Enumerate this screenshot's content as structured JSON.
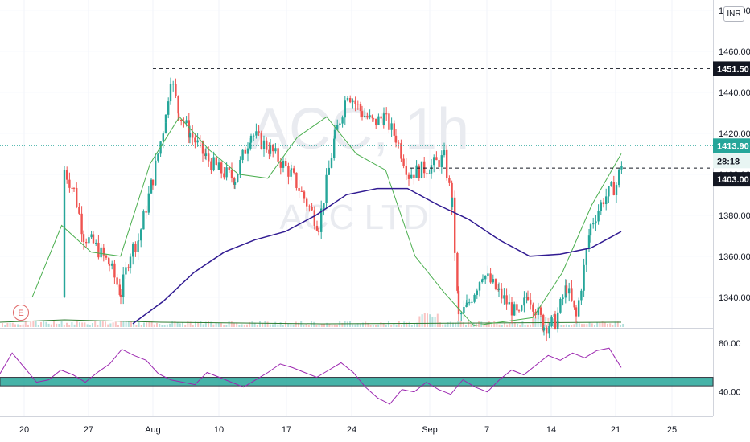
{
  "watermark": {
    "symbol": "ACC, 1h",
    "name": "ACC LTD"
  },
  "currency_badge": "INR",
  "earnings_marker": "E",
  "colors": {
    "up": "#26a69a",
    "down": "#ef5350",
    "ma_fast": "#4caf50",
    "ma_slow": "#311b92",
    "rsi": "#9c27b0",
    "band": "#26a69a",
    "volume_ma": "#2e7d32"
  },
  "chart_data": [
    {
      "type": "candlestick",
      "title": "",
      "symbol": "ACC",
      "interval": "1h",
      "ylim": [
        1325,
        1485
      ],
      "y_ticks": [
        "1340.00",
        "1360.00",
        "1380.00",
        "1400.00",
        "1420.00",
        "1440.00",
        "1460.00",
        "1480.00"
      ],
      "x_ticks": [
        "20",
        "27",
        "Aug",
        "10",
        "17",
        "24",
        "Sep",
        "7",
        "14",
        "21",
        "25"
      ],
      "price_labels": [
        {
          "text": "1451.50",
          "value": 1451.5,
          "style": "dashed-level"
        },
        {
          "text": "1413.90",
          "value": 1413.9,
          "style": "last-price"
        },
        {
          "text": "28:18",
          "style": "countdown"
        },
        {
          "text": "1403.00",
          "value": 1403.0,
          "style": "dashed-level"
        }
      ],
      "horizontal_levels": [
        1451.5,
        1403.0
      ],
      "close_path": [
        [
          "20",
          1340
        ],
        [
          "21",
          1402
        ],
        [
          "22",
          1392
        ],
        [
          "23",
          1370
        ],
        [
          "24",
          1366
        ],
        [
          "27",
          1356
        ],
        [
          "28",
          1342
        ],
        [
          "29",
          1362
        ],
        [
          "30",
          1368
        ],
        [
          "31",
          1398
        ],
        [
          "Aug 3",
          1428
        ],
        [
          "Aug 4",
          1448
        ],
        [
          "Aug 5",
          1430
        ],
        [
          "Aug 6",
          1420
        ],
        [
          "Aug 7",
          1408
        ],
        [
          "Aug 10",
          1402
        ],
        [
          "Aug 11",
          1398
        ],
        [
          "Aug 12",
          1420
        ],
        [
          "Aug 13",
          1412
        ],
        [
          "Aug 14",
          1400
        ],
        [
          "Aug 17",
          1375
        ],
        [
          "Aug 18",
          1418
        ],
        [
          "Aug 19",
          1440
        ],
        [
          "Aug 20",
          1430
        ],
        [
          "Aug 21",
          1425
        ],
        [
          "Aug 24",
          1428
        ],
        [
          "Aug 25",
          1418
        ],
        [
          "Aug 26",
          1400
        ],
        [
          "Aug 27",
          1404
        ],
        [
          "Aug 28",
          1408
        ],
        [
          "Aug 31",
          1385
        ],
        [
          "Sep 1",
          1330
        ],
        [
          "Sep 2",
          1335
        ],
        [
          "Sep 3",
          1352
        ],
        [
          "Sep 4",
          1342
        ],
        [
          "Sep 7",
          1330
        ],
        [
          "Sep 8",
          1342
        ],
        [
          "Sep 9",
          1326
        ],
        [
          "Sep 10",
          1328
        ],
        [
          "Sep 11",
          1345
        ],
        [
          "Sep 14",
          1330
        ],
        [
          "Sep 15",
          1375
        ],
        [
          "Sep 16",
          1388
        ],
        [
          "Sep 17",
          1395
        ],
        [
          "Sep 18",
          1410
        ],
        [
          "Sep 21",
          1438
        ],
        [
          "Sep 21 last",
          1413.9
        ]
      ],
      "moving_average_fast": [
        [
          "20",
          1340
        ],
        [
          "22",
          1375
        ],
        [
          "27",
          1362
        ],
        [
          "29",
          1360
        ],
        [
          "Aug 3",
          1405
        ],
        [
          "Aug 5",
          1428
        ],
        [
          "Aug 10",
          1412
        ],
        [
          "Aug 14",
          1400
        ],
        [
          "Aug 17",
          1398
        ],
        [
          "Aug 19",
          1418
        ],
        [
          "Aug 24",
          1428
        ],
        [
          "Aug 27",
          1410
        ],
        [
          "Aug 31",
          1402
        ],
        [
          "Sep 2",
          1360
        ],
        [
          "Sep 7",
          1342
        ],
        [
          "Sep 9",
          1326
        ],
        [
          "Sep 11",
          1328
        ],
        [
          "Sep 14",
          1330
        ],
        [
          "Sep 16",
          1352
        ],
        [
          "Sep 18",
          1385
        ],
        [
          "Sep 21",
          1410
        ]
      ],
      "moving_average_slow": [
        [
          "29",
          1327
        ],
        [
          "31",
          1338
        ],
        [
          "Aug 5",
          1352
        ],
        [
          "Aug 10",
          1362
        ],
        [
          "Aug 14",
          1368
        ],
        [
          "Aug 17",
          1372
        ],
        [
          "Aug 20",
          1380
        ],
        [
          "Aug 24",
          1390
        ],
        [
          "Aug 27",
          1393
        ],
        [
          "Aug 31",
          1393
        ],
        [
          "Sep 2",
          1385
        ],
        [
          "Sep 7",
          1378
        ],
        [
          "Sep 10",
          1368
        ],
        [
          "Sep 14",
          1360
        ],
        [
          "Sep 16",
          1361
        ],
        [
          "Sep 18",
          1364
        ],
        [
          "Sep 21",
          1372
        ]
      ]
    },
    {
      "type": "line",
      "title": "",
      "series_label": "RSI",
      "ylim": [
        20,
        90
      ],
      "y_ticks": [
        "80.00",
        "40.00"
      ],
      "band": [
        45,
        52
      ],
      "values": [
        55,
        72,
        60,
        48,
        50,
        58,
        54,
        48,
        56,
        63,
        75,
        70,
        66,
        55,
        50,
        48,
        46,
        56,
        52,
        48,
        44,
        50,
        56,
        63,
        60,
        56,
        52,
        58,
        64,
        56,
        44,
        35,
        30,
        42,
        40,
        48,
        42,
        38,
        50,
        44,
        40,
        50,
        58,
        54,
        62,
        70,
        66,
        72,
        68,
        74,
        76,
        60
      ]
    }
  ]
}
